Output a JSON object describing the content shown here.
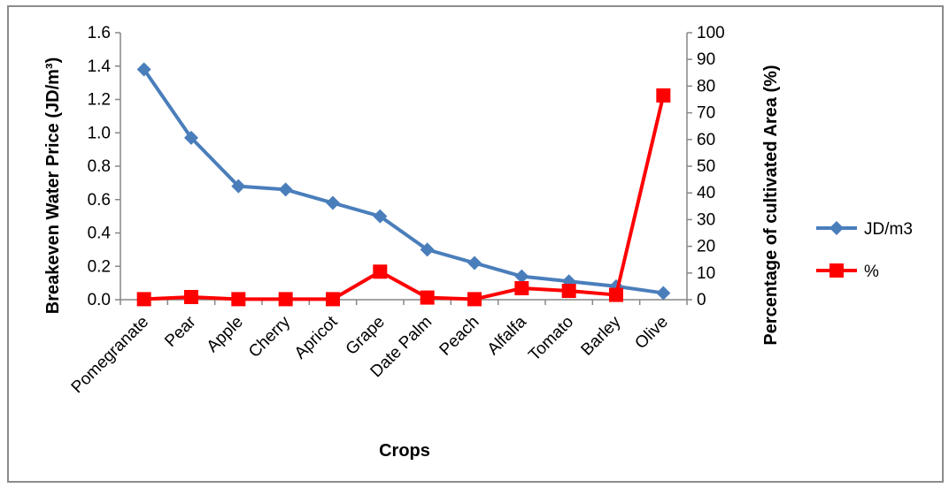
{
  "chart_data": {
    "type": "line",
    "categories": [
      "Pomegranate",
      "Pear",
      "Apple",
      "Cherry",
      "Apricot",
      "Grape",
      "Date Palm",
      "Peach",
      "Alfalfa",
      "Tomato",
      "Barley",
      "Olive"
    ],
    "series": [
      {
        "name": "JD/m3",
        "axis": "left",
        "color": "#4a7ebb",
        "marker": "diamond",
        "values": [
          1.38,
          0.97,
          0.68,
          0.66,
          0.58,
          0.5,
          0.3,
          0.22,
          0.14,
          0.11,
          0.08,
          0.04
        ]
      },
      {
        "name": "%",
        "axis": "right",
        "color": "#ff0000",
        "marker": "square",
        "values": [
          0.2,
          1.0,
          0.2,
          0.2,
          0.2,
          10.5,
          0.8,
          0.2,
          4.3,
          3.3,
          1.8,
          76.5
        ]
      }
    ],
    "xlabel": "Crops",
    "ylabel": "Breakeven Water Price (JD/m³)",
    "ylabel_right": "Percentage of cultivated  Area (%)",
    "ylim": [
      0,
      1.6
    ],
    "ylim_right": [
      0,
      100
    ],
    "yticks": [
      "0.0",
      "0.2",
      "0.4",
      "0.6",
      "0.8",
      "1.0",
      "1.2",
      "1.4",
      "1.6"
    ],
    "yticks_right": [
      "0",
      "10",
      "20",
      "30",
      "40",
      "50",
      "60",
      "70",
      "80",
      "90",
      "100"
    ],
    "legend_position": "right",
    "grid": false
  }
}
